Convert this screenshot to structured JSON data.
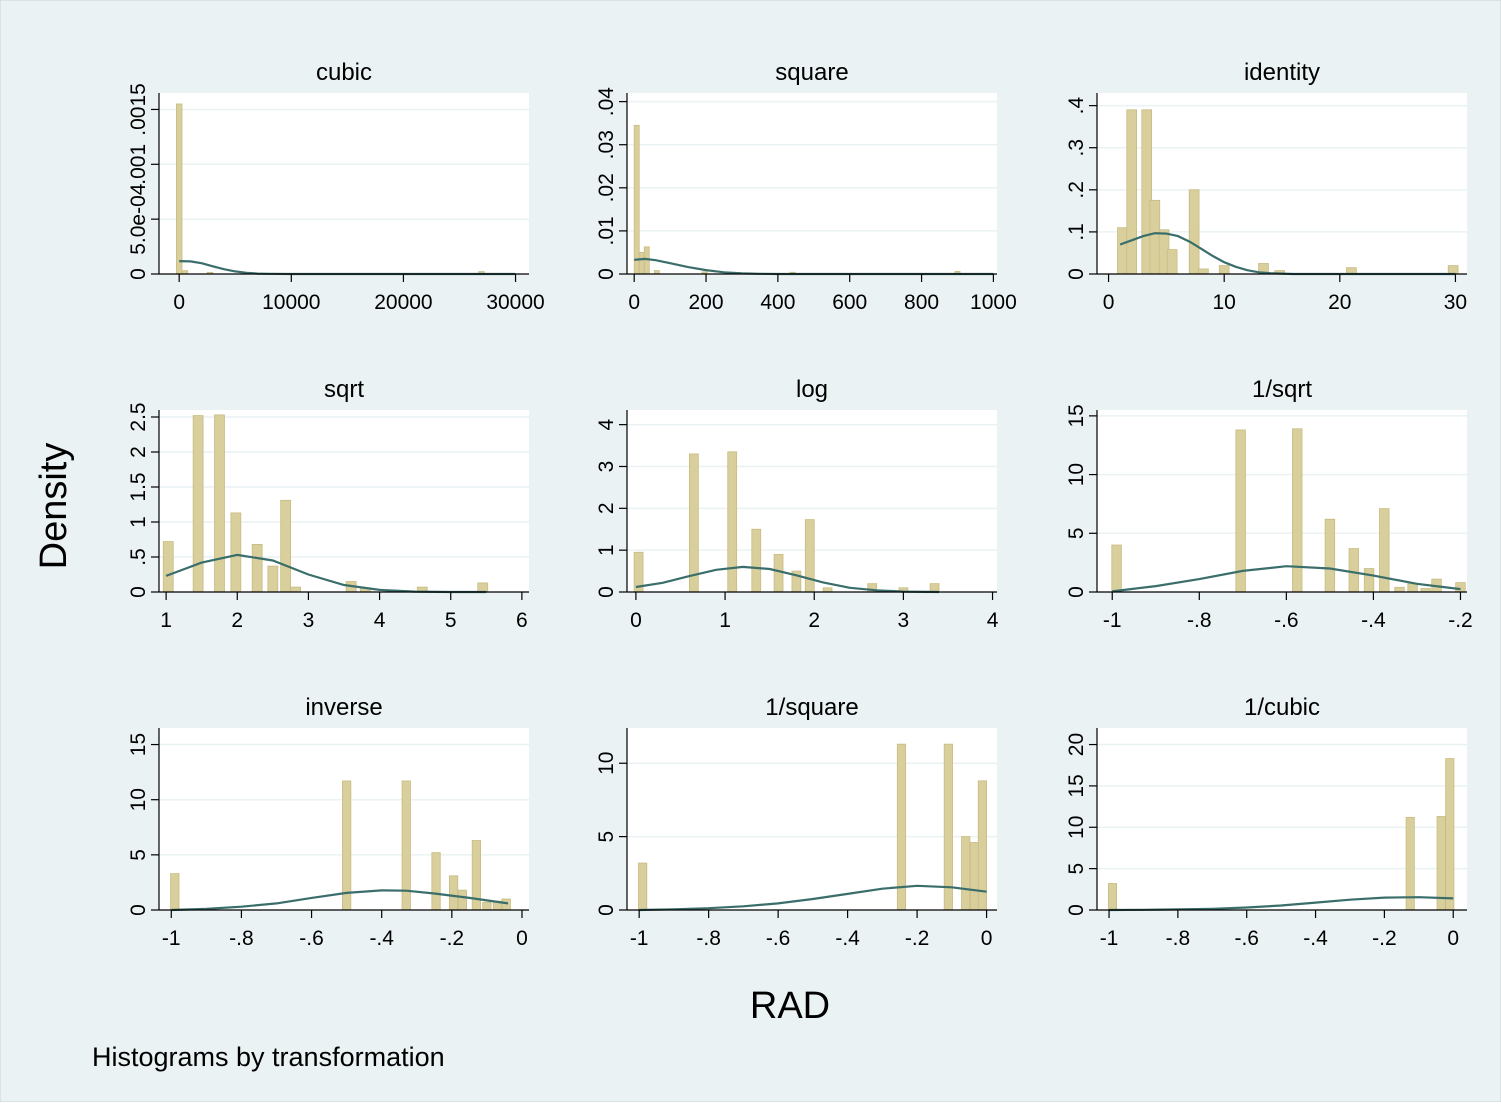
{
  "figure": {
    "ylabel": "Density",
    "xlabel": "RAD",
    "note": "Histograms by transformation"
  },
  "colors": {
    "outer_background": "#eaf2f3",
    "plot_background": "#ffffff",
    "grid": "#eaf2f3",
    "bar_fill": "#d9cf9d",
    "bar_stroke": "#c8bb80",
    "density_line": "#3a6e6b",
    "axis": "#000000"
  },
  "chart_data": [
    {
      "type": "bar",
      "title": "cubic",
      "xlim": [
        -1800,
        31200
      ],
      "ylim": [
        0,
        0.00165
      ],
      "xticks": [
        0,
        10000,
        20000,
        30000
      ],
      "xtick_labels": [
        "0",
        "10000",
        "20000",
        "30000"
      ],
      "yticks": [
        0,
        0.0005,
        0.001,
        0.0015
      ],
      "ytick_labels": [
        "0",
        "5.0e-04",
        ".001",
        ".0015"
      ],
      "bin_width": 500,
      "bars": [
        [
          1,
          0.00155
        ],
        [
          512,
          3e-05
        ],
        [
          2744,
          1.5e-05
        ],
        [
          26961,
          2.2e-05
        ]
      ],
      "density": [
        [
          0,
          0.000118
        ],
        [
          1000,
          0.000115
        ],
        [
          2000,
          9.8e-05
        ],
        [
          3000,
          7e-05
        ],
        [
          4000,
          4.4e-05
        ],
        [
          5000,
          2.4e-05
        ],
        [
          6000,
          1.1e-05
        ],
        [
          7000,
          4e-06
        ],
        [
          8000,
          1.5e-06
        ],
        [
          10000,
          0
        ],
        [
          30000,
          0
        ]
      ]
    },
    {
      "type": "bar",
      "title": "square",
      "xlim": [
        -20,
        1010
      ],
      "ylim": [
        0,
        0.042
      ],
      "xticks": [
        0,
        200,
        400,
        600,
        800,
        1000
      ],
      "xtick_labels": [
        "0",
        "200",
        "400",
        "600",
        "800",
        "1000"
      ],
      "yticks": [
        0,
        0.01,
        0.02,
        0.03,
        0.04
      ],
      "ytick_labels": [
        "0",
        ".01",
        ".02",
        ".03",
        ".04"
      ],
      "bin_width": 14,
      "bars": [
        [
          7,
          0.0345
        ],
        [
          21,
          0.005
        ],
        [
          35,
          0.0063
        ],
        [
          63,
          0.0008
        ],
        [
          196,
          0.0005
        ],
        [
          441,
          0.0004
        ],
        [
          900,
          0.0006
        ]
      ],
      "density": [
        [
          0,
          0.0033
        ],
        [
          30,
          0.0035
        ],
        [
          60,
          0.0032
        ],
        [
          100,
          0.0025
        ],
        [
          150,
          0.0016
        ],
        [
          200,
          0.0009
        ],
        [
          250,
          0.0004
        ],
        [
          300,
          0.00015
        ],
        [
          350,
          4e-05
        ],
        [
          400,
          0
        ],
        [
          1000,
          0
        ]
      ]
    },
    {
      "type": "bar",
      "title": "identity",
      "xlim": [
        -1,
        31
      ],
      "ylim": [
        0,
        0.43
      ],
      "xticks": [
        0,
        10,
        20,
        30
      ],
      "xtick_labels": [
        "0",
        "10",
        "20",
        "30"
      ],
      "yticks": [
        0,
        0.1,
        0.2,
        0.3,
        0.4
      ],
      "ytick_labels": [
        "0",
        ".1",
        ".2",
        ".3",
        ".4"
      ],
      "bin_width": 0.85,
      "bars": [
        [
          1.2,
          0.11
        ],
        [
          2.0,
          0.39
        ],
        [
          3.3,
          0.39
        ],
        [
          4.0,
          0.175
        ],
        [
          4.8,
          0.105
        ],
        [
          5.5,
          0.058
        ],
        [
          7.4,
          0.2
        ],
        [
          8.2,
          0.012
        ],
        [
          10.0,
          0.02
        ],
        [
          13.4,
          0.025
        ],
        [
          14.8,
          0.008
        ],
        [
          21.0,
          0.015
        ],
        [
          29.8,
          0.02
        ]
      ],
      "density": [
        [
          1,
          0.07
        ],
        [
          2,
          0.08
        ],
        [
          3,
          0.09
        ],
        [
          4,
          0.097
        ],
        [
          5,
          0.096
        ],
        [
          6,
          0.09
        ],
        [
          7,
          0.077
        ],
        [
          8,
          0.06
        ],
        [
          9,
          0.043
        ],
        [
          10,
          0.028
        ],
        [
          11,
          0.017
        ],
        [
          12,
          0.009
        ],
        [
          13,
          0.004
        ],
        [
          14,
          0.002
        ],
        [
          15,
          0.001
        ],
        [
          16,
          0
        ],
        [
          30,
          0
        ]
      ]
    },
    {
      "type": "bar",
      "title": "sqrt",
      "xlim": [
        0.9,
        6.1
      ],
      "ylim": [
        0,
        2.6
      ],
      "xticks": [
        1,
        2,
        3,
        4,
        5,
        6
      ],
      "xtick_labels": [
        "1",
        "2",
        "3",
        "4",
        "5",
        "6"
      ],
      "yticks": [
        0,
        0.5,
        1,
        1.5,
        2,
        2.5
      ],
      "ytick_labels": [
        "0",
        ".5",
        "1",
        "1.5",
        "2",
        "2.5"
      ],
      "bin_width": 0.14,
      "bars": [
        [
          1.03,
          0.72
        ],
        [
          1.45,
          2.52
        ],
        [
          1.75,
          2.53
        ],
        [
          1.98,
          1.13
        ],
        [
          2.28,
          0.68
        ],
        [
          2.5,
          0.37
        ],
        [
          2.68,
          1.31
        ],
        [
          2.82,
          0.07
        ],
        [
          3.6,
          0.15
        ],
        [
          3.8,
          0.06
        ],
        [
          4.6,
          0.07
        ],
        [
          5.45,
          0.13
        ]
      ],
      "density": [
        [
          1,
          0.23
        ],
        [
          1.5,
          0.42
        ],
        [
          2,
          0.53
        ],
        [
          2.5,
          0.45
        ],
        [
          3,
          0.25
        ],
        [
          3.5,
          0.1
        ],
        [
          4,
          0.03
        ],
        [
          4.5,
          0.005
        ],
        [
          5,
          0
        ],
        [
          5.5,
          0
        ]
      ]
    },
    {
      "type": "bar",
      "title": "log",
      "xlim": [
        -0.1,
        4.05
      ],
      "ylim": [
        0,
        4.35
      ],
      "xticks": [
        0,
        1,
        2,
        3,
        4
      ],
      "xtick_labels": [
        "0",
        "1",
        "2",
        "3",
        "4"
      ],
      "yticks": [
        0,
        1,
        2,
        3,
        4
      ],
      "ytick_labels": [
        "0",
        "1",
        "2",
        "3",
        "4"
      ],
      "bin_width": 0.1,
      "bars": [
        [
          0.03,
          0.95
        ],
        [
          0.65,
          3.3
        ],
        [
          1.08,
          3.35
        ],
        [
          1.35,
          1.5
        ],
        [
          1.6,
          0.9
        ],
        [
          1.8,
          0.5
        ],
        [
          1.95,
          1.73
        ],
        [
          2.15,
          0.1
        ],
        [
          2.65,
          0.2
        ],
        [
          3.0,
          0.1
        ],
        [
          3.35,
          0.2
        ]
      ],
      "density": [
        [
          0,
          0.12
        ],
        [
          0.3,
          0.22
        ],
        [
          0.6,
          0.38
        ],
        [
          0.9,
          0.53
        ],
        [
          1.2,
          0.6
        ],
        [
          1.5,
          0.55
        ],
        [
          1.8,
          0.4
        ],
        [
          2.1,
          0.23
        ],
        [
          2.4,
          0.1
        ],
        [
          2.7,
          0.04
        ],
        [
          3.0,
          0.01
        ],
        [
          3.4,
          0
        ]
      ]
    },
    {
      "type": "bar",
      "title": "1/sqrt",
      "xlim": [
        -1.035,
        -0.185
      ],
      "ylim": [
        0,
        15.5
      ],
      "xticks": [
        -1,
        -0.8,
        -0.6,
        -0.4,
        -0.2
      ],
      "xtick_labels": [
        "-1",
        "-.8",
        "-.6",
        "-.4",
        "-.2"
      ],
      "yticks": [
        0,
        5,
        10,
        15
      ],
      "ytick_labels": [
        "0",
        "5",
        "10",
        "15"
      ],
      "bin_width": 0.022,
      "bars": [
        [
          -0.99,
          4.0
        ],
        [
          -0.705,
          13.8
        ],
        [
          -0.575,
          13.9
        ],
        [
          -0.5,
          6.2
        ],
        [
          -0.445,
          3.7
        ],
        [
          -0.41,
          2.0
        ],
        [
          -0.375,
          7.1
        ],
        [
          -0.34,
          0.4
        ],
        [
          -0.31,
          0.7
        ],
        [
          -0.28,
          0.3
        ],
        [
          -0.255,
          1.1
        ],
        [
          -0.2,
          0.8
        ]
      ],
      "density": [
        [
          -1,
          0.05
        ],
        [
          -0.9,
          0.5
        ],
        [
          -0.8,
          1.1
        ],
        [
          -0.7,
          1.8
        ],
        [
          -0.6,
          2.2
        ],
        [
          -0.5,
          2.0
        ],
        [
          -0.4,
          1.4
        ],
        [
          -0.3,
          0.7
        ],
        [
          -0.2,
          0.25
        ]
      ]
    },
    {
      "type": "bar",
      "title": "inverse",
      "xlim": [
        -1.035,
        0.02
      ],
      "ylim": [
        0,
        16.5
      ],
      "xticks": [
        -1,
        -0.8,
        -0.6,
        -0.4,
        -0.2,
        0
      ],
      "xtick_labels": [
        "-1",
        "-.8",
        "-.6",
        "-.4",
        "-.2",
        "0"
      ],
      "yticks": [
        0,
        5,
        10,
        15
      ],
      "ytick_labels": [
        "0",
        "5",
        "10",
        "15"
      ],
      "bin_width": 0.024,
      "bars": [
        [
          -0.99,
          3.3
        ],
        [
          -0.5,
          11.7
        ],
        [
          -0.33,
          11.7
        ],
        [
          -0.245,
          5.2
        ],
        [
          -0.195,
          3.1
        ],
        [
          -0.17,
          1.8
        ],
        [
          -0.13,
          6.3
        ],
        [
          -0.1,
          0.7
        ],
        [
          -0.07,
          0.8
        ],
        [
          -0.045,
          1.0
        ]
      ],
      "density": [
        [
          -1,
          0
        ],
        [
          -0.9,
          0.1
        ],
        [
          -0.8,
          0.3
        ],
        [
          -0.7,
          0.6
        ],
        [
          -0.6,
          1.1
        ],
        [
          -0.5,
          1.55
        ],
        [
          -0.4,
          1.78
        ],
        [
          -0.33,
          1.75
        ],
        [
          -0.25,
          1.5
        ],
        [
          -0.15,
          1.1
        ],
        [
          -0.04,
          0.6
        ]
      ]
    },
    {
      "type": "bar",
      "title": "1/square",
      "xlim": [
        -1.035,
        0.03
      ],
      "ylim": [
        0,
        12.4
      ],
      "xticks": [
        -1,
        -0.8,
        -0.6,
        -0.4,
        -0.2,
        0
      ],
      "xtick_labels": [
        "-1",
        "-.8",
        "-.6",
        "-.4",
        "-.2",
        "0"
      ],
      "yticks": [
        0,
        5,
        10
      ],
      "ytick_labels": [
        "0",
        "5",
        "10"
      ],
      "bin_width": 0.024,
      "bars": [
        [
          -0.99,
          3.2
        ],
        [
          -0.245,
          11.3
        ],
        [
          -0.11,
          11.3
        ],
        [
          -0.06,
          5.0
        ],
        [
          -0.035,
          4.6
        ],
        [
          -0.012,
          8.8
        ]
      ],
      "density": [
        [
          -1,
          0
        ],
        [
          -0.9,
          0.05
        ],
        [
          -0.8,
          0.12
        ],
        [
          -0.7,
          0.25
        ],
        [
          -0.6,
          0.45
        ],
        [
          -0.5,
          0.75
        ],
        [
          -0.4,
          1.1
        ],
        [
          -0.3,
          1.45
        ],
        [
          -0.2,
          1.65
        ],
        [
          -0.1,
          1.55
        ],
        [
          0,
          1.25
        ]
      ]
    },
    {
      "type": "bar",
      "title": "1/cubic",
      "xlim": [
        -1.035,
        0.04
      ],
      "ylim": [
        0,
        22
      ],
      "xticks": [
        -1,
        -0.8,
        -0.6,
        -0.4,
        -0.2,
        0
      ],
      "xtick_labels": [
        "-1",
        "-.8",
        "-.6",
        "-.4",
        "-.2",
        "0"
      ],
      "yticks": [
        0,
        5,
        10,
        15,
        20
      ],
      "ytick_labels": [
        "0",
        "5",
        "10",
        "15",
        "20"
      ],
      "bin_width": 0.024,
      "bars": [
        [
          -0.99,
          3.2
        ],
        [
          -0.125,
          11.2
        ],
        [
          -0.035,
          11.3
        ],
        [
          -0.01,
          18.3
        ]
      ],
      "density": [
        [
          -1,
          0
        ],
        [
          -0.9,
          0.03
        ],
        [
          -0.8,
          0.07
        ],
        [
          -0.7,
          0.15
        ],
        [
          -0.6,
          0.3
        ],
        [
          -0.5,
          0.55
        ],
        [
          -0.4,
          0.9
        ],
        [
          -0.3,
          1.25
        ],
        [
          -0.2,
          1.5
        ],
        [
          -0.1,
          1.55
        ],
        [
          0,
          1.4
        ]
      ]
    }
  ]
}
